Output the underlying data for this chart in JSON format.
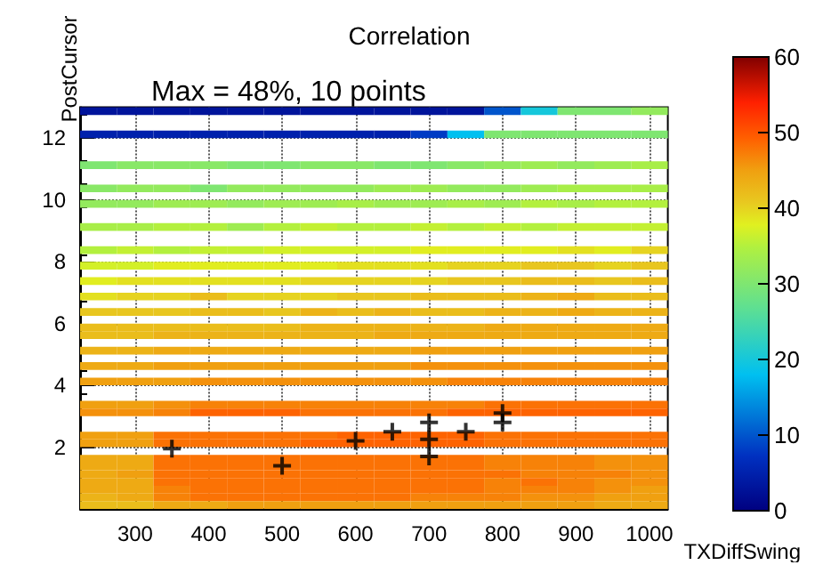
{
  "chart_data": {
    "type": "heatmap",
    "title": "Correlation",
    "xlabel": "TXDiffSwing",
    "ylabel": "PostCursor",
    "annotations": [
      "Max = 48%, 10 points"
    ],
    "xlim": [
      225,
      1025
    ],
    "xticks": [
      300,
      400,
      500,
      600,
      700,
      800,
      900,
      1000
    ],
    "ylim": [
      0,
      13
    ],
    "yticks": [
      2,
      4,
      6,
      8,
      10,
      12
    ],
    "clim": [
      0,
      60
    ],
    "cticks": [
      0,
      10,
      20,
      30,
      40,
      50,
      60
    ],
    "grid": true,
    "line_style": "dotted",
    "cells": [
      [
        3,
        3,
        3,
        3,
        3,
        3,
        3,
        3,
        3,
        3,
        3,
        10,
        20,
        30,
        30,
        32
      ],
      null,
      null,
      [
        5,
        5,
        5,
        5,
        5,
        5,
        5,
        5,
        5,
        8,
        18,
        30,
        30,
        30,
        30,
        30
      ],
      null,
      null,
      null,
      [
        30,
        31,
        31,
        31,
        30,
        30,
        31,
        31,
        30,
        30,
        31,
        32,
        33,
        32,
        33,
        34
      ],
      null,
      null,
      [
        31,
        32,
        32,
        30,
        32,
        32,
        32,
        32,
        33,
        33,
        32,
        32,
        33,
        34,
        34,
        34
      ],
      null,
      [
        32,
        32,
        33,
        33,
        32,
        33,
        33,
        34,
        33,
        33,
        34,
        33,
        35,
        34,
        35,
        35
      ],
      null,
      null,
      [
        34,
        34,
        35,
        35,
        33,
        35,
        36,
        35,
        35,
        36,
        35,
        36,
        35,
        36,
        36,
        36
      ],
      null,
      null,
      [
        35,
        36,
        35,
        36,
        36,
        37,
        37,
        37,
        37,
        38,
        38,
        38,
        38,
        39,
        38,
        40
      ],
      null,
      [
        37,
        37,
        38,
        38,
        38,
        38,
        38,
        39,
        39,
        39,
        40,
        40,
        41,
        41,
        40,
        41
      ],
      null,
      [
        38,
        39,
        39,
        39,
        39,
        39,
        40,
        40,
        40,
        40,
        41,
        41,
        42,
        42,
        41,
        42
      ],
      null,
      [
        39,
        40,
        40,
        42,
        40,
        40,
        40,
        41,
        41,
        42,
        42,
        42,
        43,
        44,
        42,
        42
      ],
      null,
      [
        41,
        41,
        41,
        42,
        42,
        41,
        43,
        42,
        43,
        42,
        42,
        43,
        43,
        44,
        43,
        43
      ],
      null,
      [
        42,
        42,
        42,
        42,
        42,
        42,
        43,
        43,
        43,
        43,
        43,
        44,
        44,
        44,
        44,
        44
      ],
      [
        42,
        42,
        43,
        43,
        43,
        43,
        43,
        43,
        44,
        44,
        44,
        44,
        44,
        44,
        44,
        44
      ],
      null,
      [
        43,
        43,
        44,
        44,
        44,
        44,
        44,
        44,
        44,
        45,
        45,
        45,
        45,
        45,
        45,
        45
      ],
      null,
      [
        44,
        44,
        45,
        45,
        45,
        45,
        45,
        45,
        45,
        46,
        46,
        46,
        46,
        46,
        46,
        46
      ],
      null,
      [
        45,
        45,
        45,
        46,
        46,
        46,
        46,
        46,
        46,
        46,
        47,
        47,
        47,
        47,
        47,
        47
      ],
      null,
      null,
      [
        45,
        45,
        46,
        47,
        47,
        47,
        47,
        47,
        47,
        47,
        47,
        48,
        48,
        48,
        48,
        48
      ],
      [
        46,
        46,
        47,
        49,
        49,
        49,
        48,
        48,
        48,
        48,
        49,
        49,
        49,
        49,
        49,
        49
      ],
      null,
      null,
      [
        45,
        45,
        48,
        48,
        48,
        48,
        48,
        49,
        49,
        49,
        49,
        48,
        48,
        48,
        48,
        48
      ],
      [
        45,
        45,
        48,
        48,
        48,
        48,
        49,
        49,
        49,
        49,
        49,
        48,
        48,
        48,
        48,
        48
      ],
      null,
      [
        44,
        44,
        48,
        48,
        48,
        48,
        48,
        48,
        48,
        48,
        48,
        47,
        47,
        47,
        46,
        46
      ],
      [
        44,
        44,
        48,
        48,
        48,
        48,
        48,
        48,
        48,
        48,
        48,
        47,
        47,
        47,
        46,
        46
      ],
      [
        44,
        45,
        48,
        48,
        48,
        48,
        48,
        48,
        48,
        48,
        48,
        48,
        47,
        47,
        47,
        46
      ],
      [
        44,
        44,
        48,
        48,
        48,
        48,
        48,
        48,
        48,
        48,
        48,
        47,
        48,
        47,
        46,
        46
      ],
      [
        44,
        44,
        47,
        48,
        48,
        48,
        48,
        48,
        48,
        48,
        48,
        47,
        47,
        47,
        46,
        45
      ],
      [
        43,
        44,
        47,
        48,
        48,
        48,
        48,
        48,
        48,
        47,
        47,
        47,
        46,
        46,
        45,
        45
      ],
      [
        42,
        42,
        44,
        44,
        45,
        45,
        45,
        45,
        45,
        45,
        45,
        45,
        45,
        45,
        44,
        44
      ]
    ],
    "series": [
      {
        "type": "scatter",
        "color": "#000000",
        "marker": "cross",
        "x": [
          350,
          500,
          600,
          650,
          700,
          700,
          700,
          750,
          800,
          800
        ],
        "values": [
          1.95,
          1.4,
          2.2,
          2.5,
          2.8,
          2.25,
          1.7,
          2.5,
          3.1,
          2.8
        ]
      }
    ]
  }
}
